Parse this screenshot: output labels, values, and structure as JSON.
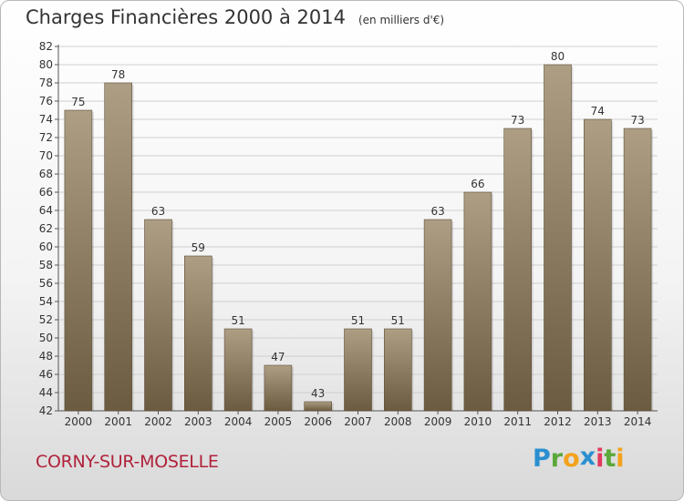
{
  "title": "Charges Financières 2000 à 2014",
  "subtitle": "(en milliers d'€)",
  "commune": "CORNY-SUR-MOSELLE",
  "brand": {
    "letters": [
      "P",
      "r",
      "o",
      "x",
      "i",
      "t",
      "i"
    ],
    "colors": [
      "#2a8fd0",
      "#5aa83a",
      "#f2a21b",
      "#2a8fd0",
      "#e13a5e",
      "#5aa83a",
      "#f2a21b"
    ]
  },
  "colors": {
    "bar_top": "#ad9e84",
    "bar_bottom": "#6b5b40",
    "text": "#333333",
    "grid": "#cfcfcf"
  },
  "chart_data": {
    "type": "bar",
    "categories": [
      "2000",
      "2001",
      "2002",
      "2003",
      "2004",
      "2005",
      "2006",
      "2007",
      "2008",
      "2009",
      "2010",
      "2011",
      "2012",
      "2013",
      "2014"
    ],
    "values": [
      75,
      78,
      63,
      59,
      51,
      47,
      43,
      51,
      51,
      63,
      66,
      73,
      80,
      74,
      73
    ],
    "title": "Charges Financières 2000 à 2014",
    "subtitle": "(en milliers d'€)",
    "xlabel": "",
    "ylabel": "",
    "ylim": [
      42,
      82
    ],
    "yticks": [
      42,
      44,
      46,
      48,
      50,
      52,
      54,
      56,
      58,
      60,
      62,
      64,
      66,
      68,
      70,
      72,
      74,
      76,
      78,
      80,
      82
    ],
    "grid": true,
    "data_labels": true
  }
}
